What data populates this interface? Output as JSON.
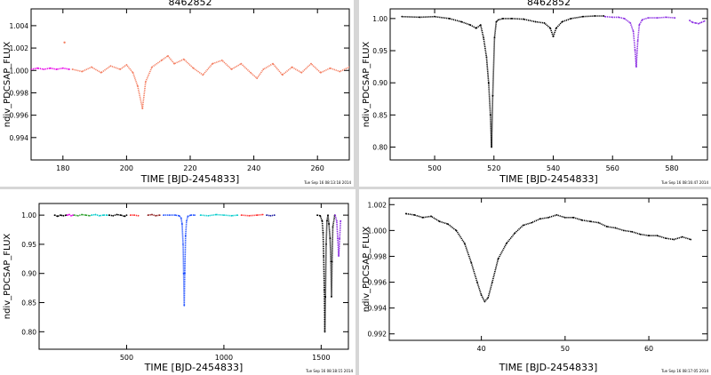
{
  "chart_data": [
    {
      "type": "scatter",
      "title": "8462852",
      "xlabel": "TIME [BJD-2454833]",
      "ylabel": "ndiv_PDCSAP_FLUX",
      "xlim": [
        170,
        270
      ],
      "ylim": [
        0.992,
        1.0055
      ],
      "xticks": [
        180,
        200,
        220,
        240,
        260
      ],
      "xtick_labels": [
        "180",
        "200",
        "220",
        "240",
        "260"
      ],
      "yticks": [
        0.994,
        0.996,
        0.998,
        1.0,
        1.002,
        1.004
      ],
      "ytick_labels": [
        "0.994",
        "0.996",
        "0.998",
        "1.000",
        "1.002",
        "1.004"
      ],
      "footer": "Tue Sep 16 08:13:18 2014",
      "series": [
        {
          "color": "#e800e8",
          "x": [
            170,
            172,
            174,
            176,
            178,
            180,
            182
          ],
          "y": [
            1.0001,
            1.0002,
            1.0001,
            1.0002,
            1.0001,
            1.0002,
            1.0001
          ]
        },
        {
          "color": "#f47f62",
          "x": [
            183,
            186,
            189,
            192,
            195,
            198,
            200,
            202,
            203.5,
            205,
            206,
            208,
            211,
            213,
            215,
            218,
            221,
            224,
            227,
            230,
            233,
            236,
            239,
            241,
            243,
            246,
            249,
            252,
            255,
            258,
            261,
            264,
            267,
            270
          ],
          "y": [
            1.0001,
            0.9999,
            1.0003,
            0.9998,
            1.0004,
            1.0001,
            1.0005,
            0.9998,
            0.9986,
            0.9966,
            0.999,
            1.0003,
            1.0009,
            1.0013,
            1.0006,
            1.001,
            1.0002,
            0.9996,
            1.0006,
            1.0009,
            1.0001,
            1.0006,
            0.9998,
            0.9993,
            1.0001,
            1.0006,
            0.9996,
            1.0003,
            0.9998,
            1.0006,
            0.9998,
            1.0002,
            0.9999,
            1.0003
          ]
        }
      ],
      "points": [
        {
          "x": 180.5,
          "y": 1.0025,
          "color": "#f47f62"
        }
      ]
    },
    {
      "type": "scatter",
      "title": "8462852",
      "xlabel": "TIME [BJD-2454833]",
      "ylabel": "ndiv_PDCSAP_FLUX",
      "xlim": [
        485,
        592
      ],
      "ylim": [
        0.78,
        1.015
      ],
      "xticks": [
        500,
        520,
        540,
        560,
        580
      ],
      "xtick_labels": [
        "500",
        "520",
        "540",
        "560",
        "580"
      ],
      "yticks": [
        0.8,
        0.85,
        0.9,
        0.95,
        1.0
      ],
      "ytick_labels": [
        "0.80",
        "0.85",
        "0.90",
        "0.95",
        "1.00"
      ],
      "footer": "Tue Sep 16 08:16:47 2014",
      "series": [
        {
          "color": "#000000",
          "x": [
            489,
            495,
            500,
            505,
            509,
            512,
            514,
            515.5,
            516.5,
            517.5,
            518.2,
            518.8,
            519.2,
            519.6,
            520.2,
            520.8,
            521.5,
            523,
            526,
            530,
            534,
            537,
            539,
            540,
            541,
            543,
            546,
            550,
            554,
            557
          ],
          "y": [
            1.003,
            1.002,
            1.003,
            1.0,
            0.995,
            0.99,
            0.985,
            0.99,
            0.97,
            0.94,
            0.9,
            0.85,
            0.8,
            0.88,
            0.97,
            0.995,
            0.998,
            1.0,
            1.0,
            0.999,
            0.995,
            0.993,
            0.985,
            0.972,
            0.985,
            0.995,
            1.0,
            1.003,
            1.004,
            1.004
          ]
        },
        {
          "color": "#8a2be2",
          "x": [
            557.5,
            560,
            562,
            564,
            566,
            567,
            567.6,
            568,
            568.5,
            569,
            570,
            572,
            575,
            578,
            581
          ],
          "y": [
            1.003,
            1.002,
            1.002,
            1.0,
            0.993,
            0.98,
            0.95,
            0.925,
            0.965,
            0.99,
            0.998,
            1.001,
            1.001,
            1.002,
            1.001
          ]
        },
        {
          "color": "#8a2be2",
          "x": [
            586,
            587,
            588,
            589,
            590,
            591
          ],
          "y": [
            0.997,
            0.994,
            0.993,
            0.992,
            0.994,
            0.996
          ]
        }
      ]
    },
    {
      "type": "scatter",
      "title": "",
      "xlabel": "TIME [BJD-2454833]",
      "ylabel": "ndiv_PDCSAP_FLUX",
      "xlim": [
        50,
        1640
      ],
      "ylim": [
        0.77,
        1.02
      ],
      "xticks": [
        500,
        1000,
        1500
      ],
      "xtick_labels": [
        "500",
        "1000",
        "1500"
      ],
      "yticks": [
        0.8,
        0.85,
        0.9,
        0.95,
        1.0
      ],
      "ytick_labels": [
        "0.80",
        "0.85",
        "0.90",
        "0.95",
        "1.00"
      ],
      "footer": "Tue Sep 16 08:18:15 2014",
      "series": [
        {
          "color": "#000000",
          "x": [
            130,
            145,
            160,
            175,
            190
          ],
          "y": [
            1.0,
            0.998,
            1.0,
            0.999,
            1.0
          ]
        },
        {
          "color": "#e800e8",
          "x": [
            195,
            205,
            215,
            225
          ],
          "y": [
            1.0,
            1.001,
            0.999,
            1.0
          ]
        },
        {
          "color": "#2ca02c",
          "x": [
            230,
            250,
            270,
            290,
            310
          ],
          "y": [
            1.0,
            0.999,
            1.001,
            1.0,
            0.999
          ]
        },
        {
          "color": "#00cccc",
          "x": [
            320,
            340,
            360,
            380,
            400
          ],
          "y": [
            1.0,
            1.001,
            0.999,
            1.0,
            1.0
          ]
        },
        {
          "color": "#000000",
          "x": [
            410,
            430,
            450,
            470,
            490,
            500
          ],
          "y": [
            1.0,
            0.999,
            1.001,
            1.0,
            0.998,
            1.0
          ]
        },
        {
          "color": "#ff3030",
          "x": [
            520,
            540,
            560
          ],
          "y": [
            1.0,
            1.0,
            0.999
          ]
        },
        {
          "color": "#8b1a1a",
          "x": [
            610,
            630,
            650,
            670
          ],
          "y": [
            1.0,
            1.001,
            0.999,
            1.0
          ]
        },
        {
          "color": "#2050ff",
          "x": [
            690,
            720,
            750,
            770,
            780,
            785,
            790,
            793,
            796,
            799,
            803,
            808,
            815,
            830,
            850
          ],
          "y": [
            1.0,
            1.0,
            1.0,
            0.999,
            0.995,
            0.985,
            0.95,
            0.9,
            0.845,
            0.9,
            0.965,
            0.99,
            0.998,
            1.0,
            1.0
          ]
        },
        {
          "color": "#00cccc",
          "x": [
            880,
            920,
            960,
            1000,
            1040,
            1070
          ],
          "y": [
            1.0,
            0.999,
            1.001,
            1.0,
            0.999,
            1.0
          ]
        },
        {
          "color": "#ff3030",
          "x": [
            1090,
            1130,
            1170,
            1200
          ],
          "y": [
            1.0,
            0.999,
            1.0,
            1.001
          ]
        },
        {
          "color": "#1a1aa0",
          "x": [
            1220,
            1240,
            1260
          ],
          "y": [
            1.0,
            0.999,
            1.0
          ]
        },
        {
          "color": "#000000",
          "x": [
            1480,
            1495,
            1505,
            1510,
            1513,
            1516,
            1519,
            1522,
            1526,
            1530,
            1535,
            1540,
            1546,
            1550,
            1553,
            1556,
            1560,
            1570
          ],
          "y": [
            1.0,
            0.999,
            0.99,
            0.97,
            0.93,
            0.87,
            0.8,
            0.86,
            0.95,
            0.99,
            1.0,
            0.985,
            0.96,
            0.92,
            0.86,
            0.92,
            0.98,
            1.0
          ]
        },
        {
          "color": "#8a2be2",
          "x": [
            1572,
            1580,
            1585,
            1590,
            1595,
            1600
          ],
          "y": [
            1.0,
            0.99,
            0.96,
            0.93,
            0.96,
            0.99
          ]
        }
      ]
    },
    {
      "type": "scatter",
      "title": "",
      "xlabel": "TIME [BJD-2454833]",
      "ylabel": "ndiv_PDCSAP_FLUX",
      "xlim": [
        29,
        67
      ],
      "ylim": [
        0.9915,
        1.0025
      ],
      "xticks": [
        40,
        50,
        60
      ],
      "xtick_labels": [
        "40",
        "50",
        "60"
      ],
      "yticks": [
        0.992,
        0.994,
        0.996,
        0.998,
        1.0,
        1.002
      ],
      "ytick_labels": [
        "0.992",
        "0.994",
        "0.996",
        "0.998",
        "1.000",
        "1.002"
      ],
      "footer": "Tue Sep 16 08:17:05 2014",
      "series": [
        {
          "color": "#000000",
          "x": [
            31,
            32,
            33,
            34,
            35,
            36,
            37,
            38,
            38.8,
            39.5,
            40,
            40.4,
            40.8,
            41.3,
            42,
            43,
            44,
            45,
            46,
            47,
            48,
            49,
            50,
            51,
            52,
            53,
            54,
            55,
            56,
            57,
            58,
            59,
            60,
            61,
            62,
            63,
            64,
            65
          ],
          "y": [
            1.0013,
            1.0012,
            1.001,
            1.0011,
            1.0007,
            1.0005,
            1.0,
            0.999,
            0.9975,
            0.996,
            0.995,
            0.9945,
            0.9948,
            0.996,
            0.9978,
            0.999,
            0.9998,
            1.0004,
            1.0006,
            1.0009,
            1.001,
            1.0012,
            1.001,
            1.001,
            1.0008,
            1.0007,
            1.0006,
            1.0003,
            1.0002,
            1.0,
            0.9999,
            0.9997,
            0.9996,
            0.9996,
            0.9994,
            0.9993,
            0.9995,
            0.9993
          ]
        }
      ]
    }
  ]
}
